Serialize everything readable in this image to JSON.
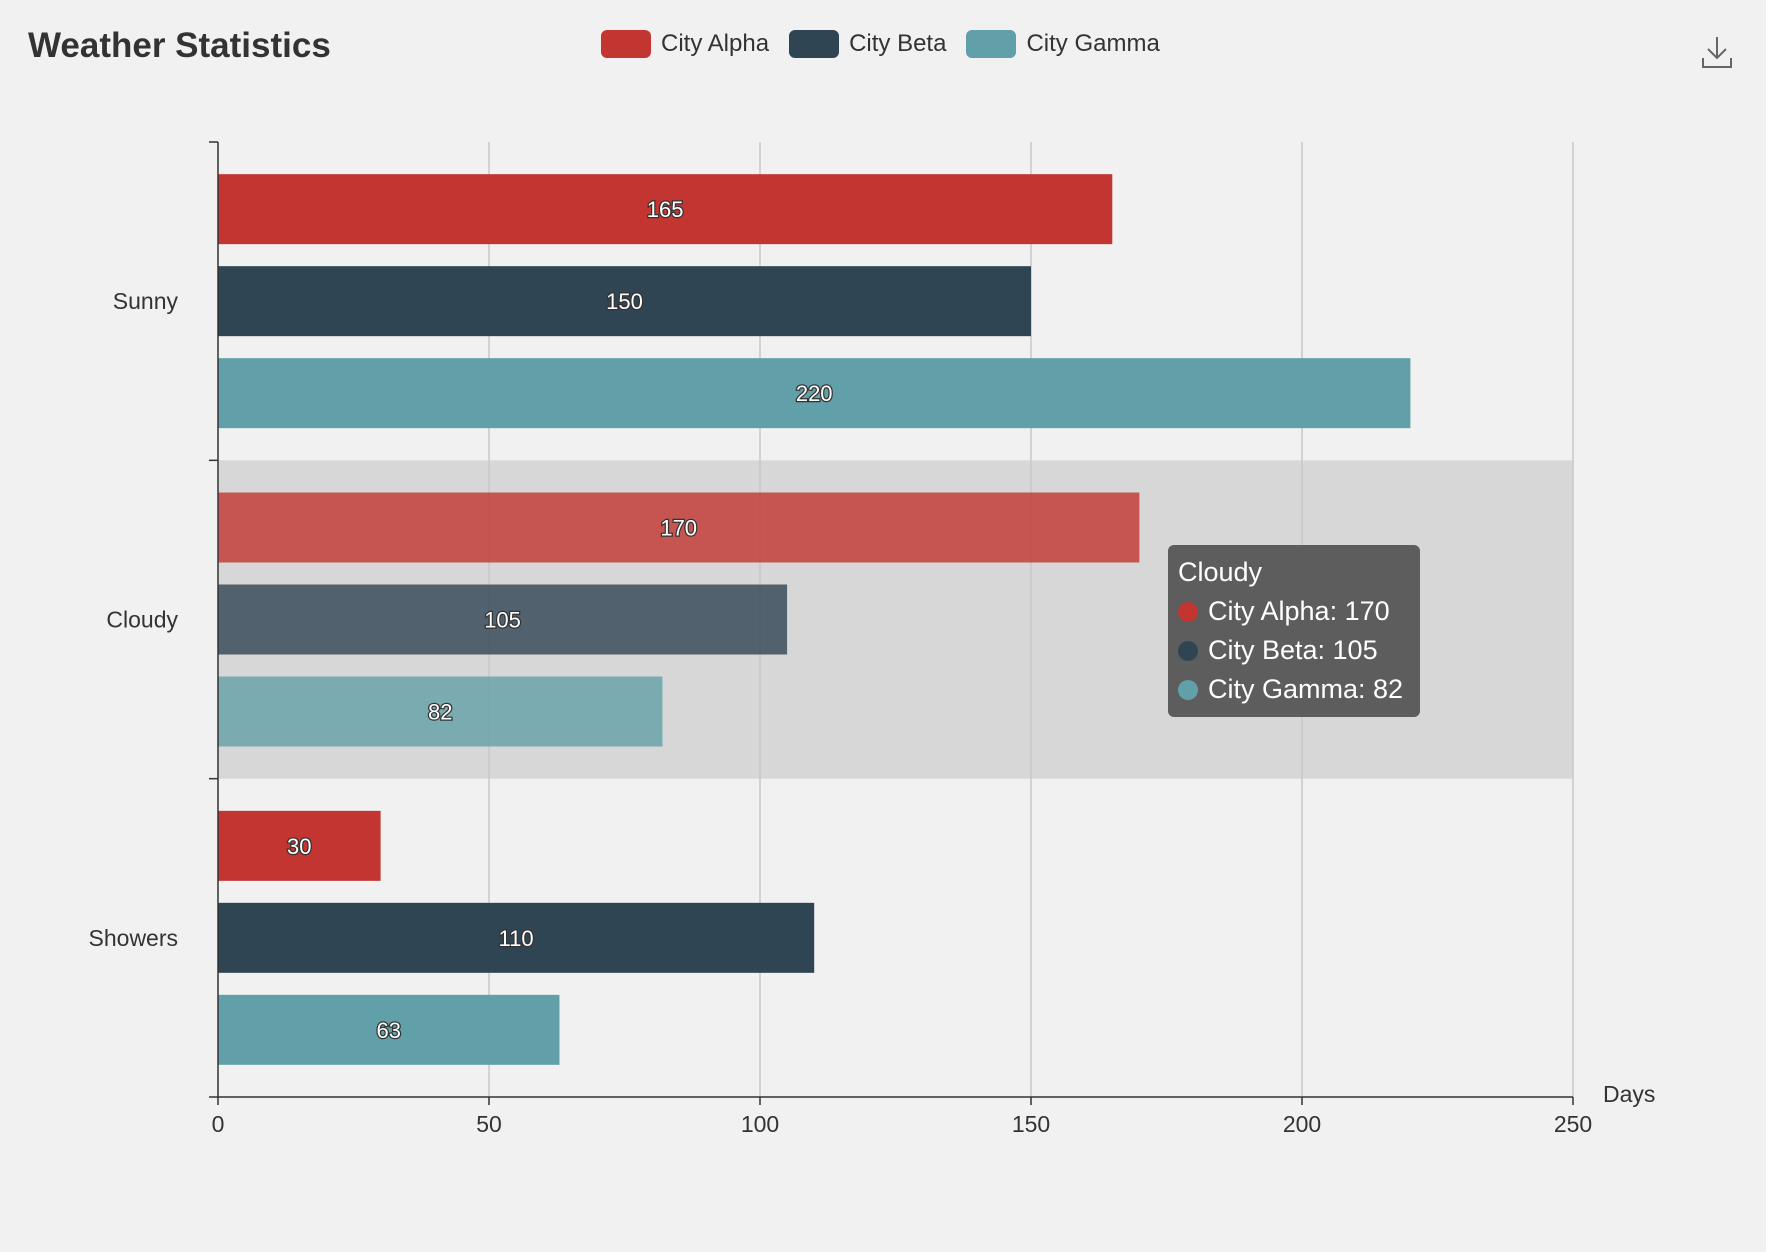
{
  "title": "Weather Statistics",
  "legend": [
    {
      "label": "City Alpha",
      "color": "#c23531"
    },
    {
      "label": "City Beta",
      "color": "#2f4554"
    },
    {
      "label": "City Gamma",
      "color": "#61a0a8"
    }
  ],
  "download_icon": "download-icon",
  "tooltip": {
    "title": "Cloudy",
    "rows": [
      {
        "text": "City Alpha: 170",
        "color": "#c23531"
      },
      {
        "text": "City Beta: 105",
        "color": "#2f4554"
      },
      {
        "text": "City Gamma: 82",
        "color": "#61a0a8"
      }
    ]
  },
  "chart_data": {
    "type": "bar",
    "orientation": "horizontal",
    "title": "Weather Statistics",
    "xlabel": "Days",
    "ylabel": "",
    "xlim": [
      0,
      250
    ],
    "x_ticks": [
      0,
      50,
      100,
      150,
      200,
      250
    ],
    "categories": [
      "Sunny",
      "Cloudy",
      "Showers"
    ],
    "highlighted_category": "Cloudy",
    "grid": true,
    "legend_position": "top",
    "series": [
      {
        "name": "City Alpha",
        "color": "#c23531",
        "values": [
          165,
          170,
          30
        ]
      },
      {
        "name": "City Beta",
        "color": "#2f4554",
        "values": [
          150,
          105,
          110
        ]
      },
      {
        "name": "City Gamma",
        "color": "#61a0a8",
        "values": [
          220,
          82,
          63
        ]
      }
    ]
  }
}
